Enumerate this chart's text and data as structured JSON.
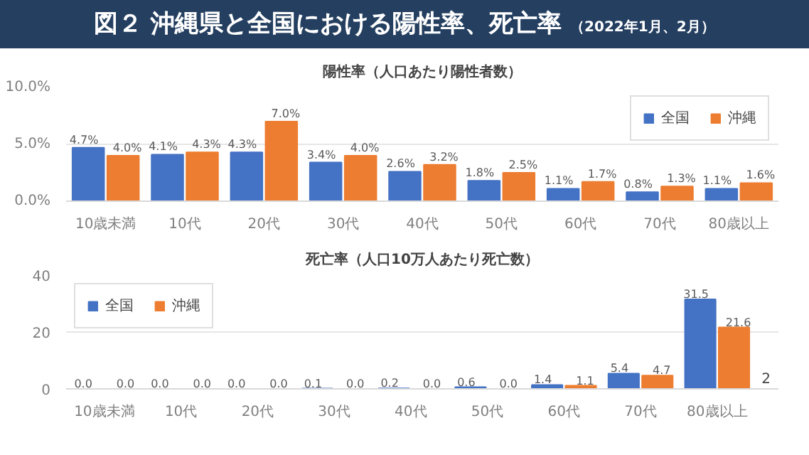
{
  "chart_data": [
    {
      "type": "bar",
      "title": "図２ 沖縄県と全国における陽性率、死亡率",
      "subtitle": "陽性率（人口あたり陽性者数）",
      "annotations": [
        "（2022年1月、2月）"
      ],
      "categories": [
        "10歳未満",
        "10代",
        "20代",
        "30代",
        "40代",
        "50代",
        "60代",
        "70代",
        "80歳以上"
      ],
      "series": [
        {
          "name": "全国",
          "color": "#4472c4",
          "values": [
            4.7,
            4.1,
            4.3,
            3.4,
            2.6,
            1.8,
            1.1,
            0.8,
            1.1
          ],
          "value_labels": [
            "4.7%",
            "4.1%",
            "4.3%",
            "3.4%",
            "2.6%",
            "1.8%",
            "1.1%",
            "0.8%",
            "1.1%"
          ]
        },
        {
          "name": "沖縄",
          "color": "#ed7d31",
          "values": [
            4.0,
            4.3,
            7.0,
            4.0,
            3.2,
            2.5,
            1.7,
            1.3,
            1.6
          ],
          "value_labels": [
            "4.0%",
            "4.3%",
            "7.0%",
            "4.0%",
            "3.2%",
            "2.5%",
            "1.7%",
            "1.3%",
            "1.6%"
          ]
        }
      ],
      "ylim": [
        0,
        10
      ],
      "yticks": [
        {
          "value": 0,
          "label": "0.0%"
        },
        {
          "value": 5,
          "label": "5.0%"
        },
        {
          "value": 10,
          "label": "10.0%"
        }
      ],
      "grid": "y",
      "legend": "top right"
    },
    {
      "type": "bar",
      "title": "死亡率（人口10万人あたり死亡数）",
      "annotations": [
        "2"
      ],
      "categories": [
        "10歳未満",
        "10代",
        "20代",
        "30代",
        "40代",
        "50代",
        "60代",
        "70代",
        "80歳以上"
      ],
      "series": [
        {
          "name": "全国",
          "color": "#4472c4",
          "values": [
            0.0,
            0.0,
            0.0,
            0.1,
            0.2,
            0.6,
            1.4,
            5.4,
            31.5
          ],
          "value_labels": [
            "0.0",
            "0.0",
            "0.0",
            "0.1",
            "0.2",
            "0.6",
            "1.4",
            "5.4",
            "31.5"
          ]
        },
        {
          "name": "沖縄",
          "color": "#ed7d31",
          "values": [
            0.0,
            0.0,
            0.0,
            0.0,
            0.0,
            0.0,
            1.1,
            4.7,
            21.6
          ],
          "value_labels": [
            "0.0",
            "0.0",
            "0.0",
            "0.0",
            "0.0",
            "0.0",
            "1.1",
            "4.7",
            "21.6"
          ]
        }
      ],
      "ylim": [
        0,
        40
      ],
      "yticks": [
        0,
        20,
        40
      ],
      "grid": "y",
      "legend": "top left"
    }
  ]
}
